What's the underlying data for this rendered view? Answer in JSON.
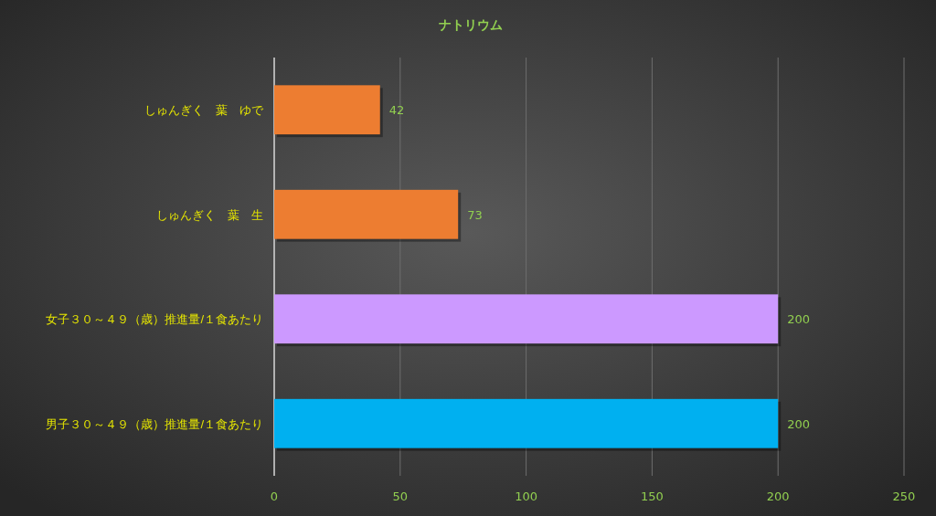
{
  "chart_data": {
    "type": "bar",
    "orientation": "horizontal",
    "title": "ナトリウム",
    "categories": [
      "しゅんぎく　葉　ゆで",
      "しゅんぎく　葉　生",
      "女子３０～４９（歳）推進量/１食あたり",
      "男子３０～４９（歳）推進量/１食あたり"
    ],
    "values": [
      42,
      73,
      200,
      200
    ],
    "colors": [
      "#ed7d31",
      "#ed7d31",
      "#cc99ff",
      "#00b0f0"
    ],
    "xlim": [
      0,
      250
    ],
    "xticks": [
      0,
      50,
      100,
      150,
      200,
      250
    ],
    "grid": "x",
    "data_labels": true
  }
}
